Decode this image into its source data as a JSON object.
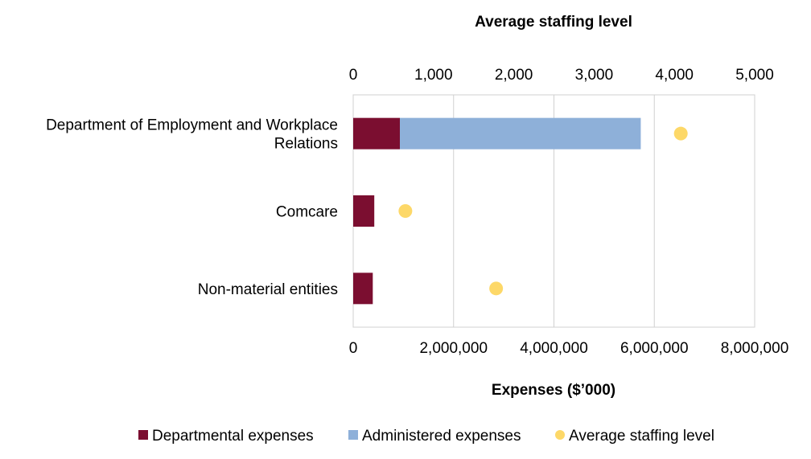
{
  "chart_data": {
    "type": "bar",
    "orientation": "horizontal",
    "stacked": true,
    "categories": [
      "Department of Employment and Workplace Relations",
      "Comcare",
      "Non-material entities"
    ],
    "series": [
      {
        "name": "Departmental expenses",
        "axis": "bottom",
        "color": "#7b0e30",
        "values": [
          930000,
          420000,
          390000
        ]
      },
      {
        "name": "Administered expenses",
        "axis": "bottom",
        "color": "#8eb0d9",
        "values": [
          4800000,
          0,
          0
        ]
      }
    ],
    "scatter_series": {
      "name": "Average staffing level",
      "axis": "top",
      "color": "#fdd868",
      "values": [
        4080,
        650,
        1780
      ]
    },
    "bottom_axis": {
      "title": "Expenses ($’000)",
      "range": [
        0,
        8000000
      ],
      "ticks": [
        0,
        2000000,
        4000000,
        6000000,
        8000000
      ],
      "tick_labels": [
        "0",
        "2,000,000",
        "4,000,000",
        "6,000,000",
        "8,000,000"
      ]
    },
    "top_axis": {
      "title": "Average staffing level",
      "range": [
        0,
        5000
      ],
      "ticks": [
        0,
        1000,
        2000,
        3000,
        4000,
        5000
      ],
      "tick_labels": [
        "0",
        "1,000",
        "2,000",
        "3,000",
        "4,000",
        "5,000"
      ]
    },
    "grid": true,
    "legend_position": "bottom",
    "legend": [
      {
        "label": "Departmental expenses",
        "shape": "square",
        "color": "#7b0e30"
      },
      {
        "label": "Administered expenses",
        "shape": "square",
        "color": "#8eb0d9"
      },
      {
        "label": "Average staffing level",
        "shape": "circle",
        "color": "#fdd868"
      }
    ]
  }
}
